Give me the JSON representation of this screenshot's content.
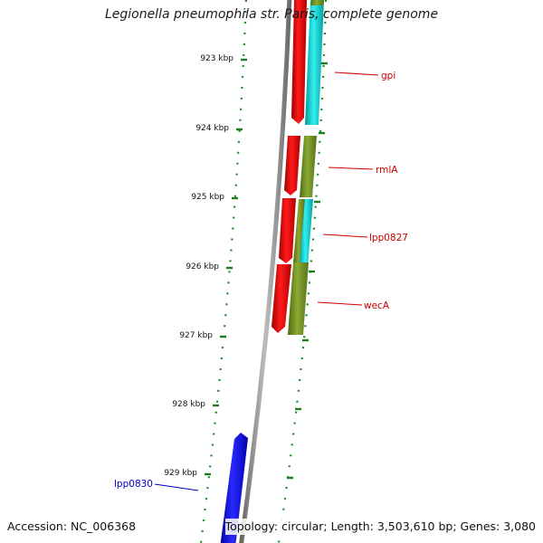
{
  "title": "Legionella pneumophila str. Paris, complete genome",
  "accession": "Accession: NC_006368",
  "topology": "Topology: circular; Length: 3,503,610 bp; Genes: 3,080",
  "kbp_labels": [
    "923 kbp",
    "924 kbp",
    "925 kbp",
    "926 kbp",
    "927 kbp",
    "928 kbp",
    "929 kbp"
  ],
  "gene_labels": [
    {
      "name": "gpi",
      "color": "#cc0000"
    },
    {
      "name": "rmlA",
      "color": "#cc0000"
    },
    {
      "name": "lpp0827",
      "color": "#cc0000"
    },
    {
      "name": "wecA",
      "color": "#cc0000"
    },
    {
      "name": "lpp0830",
      "color": "#0000cc"
    }
  ],
  "colors": {
    "red_feature": "#ff0000",
    "cyan_feature": "#00cccc",
    "olive_feature": "#6b8e23",
    "blue_feature": "#0000ff",
    "backbone": "#808080",
    "tick_green": "#228b22"
  }
}
